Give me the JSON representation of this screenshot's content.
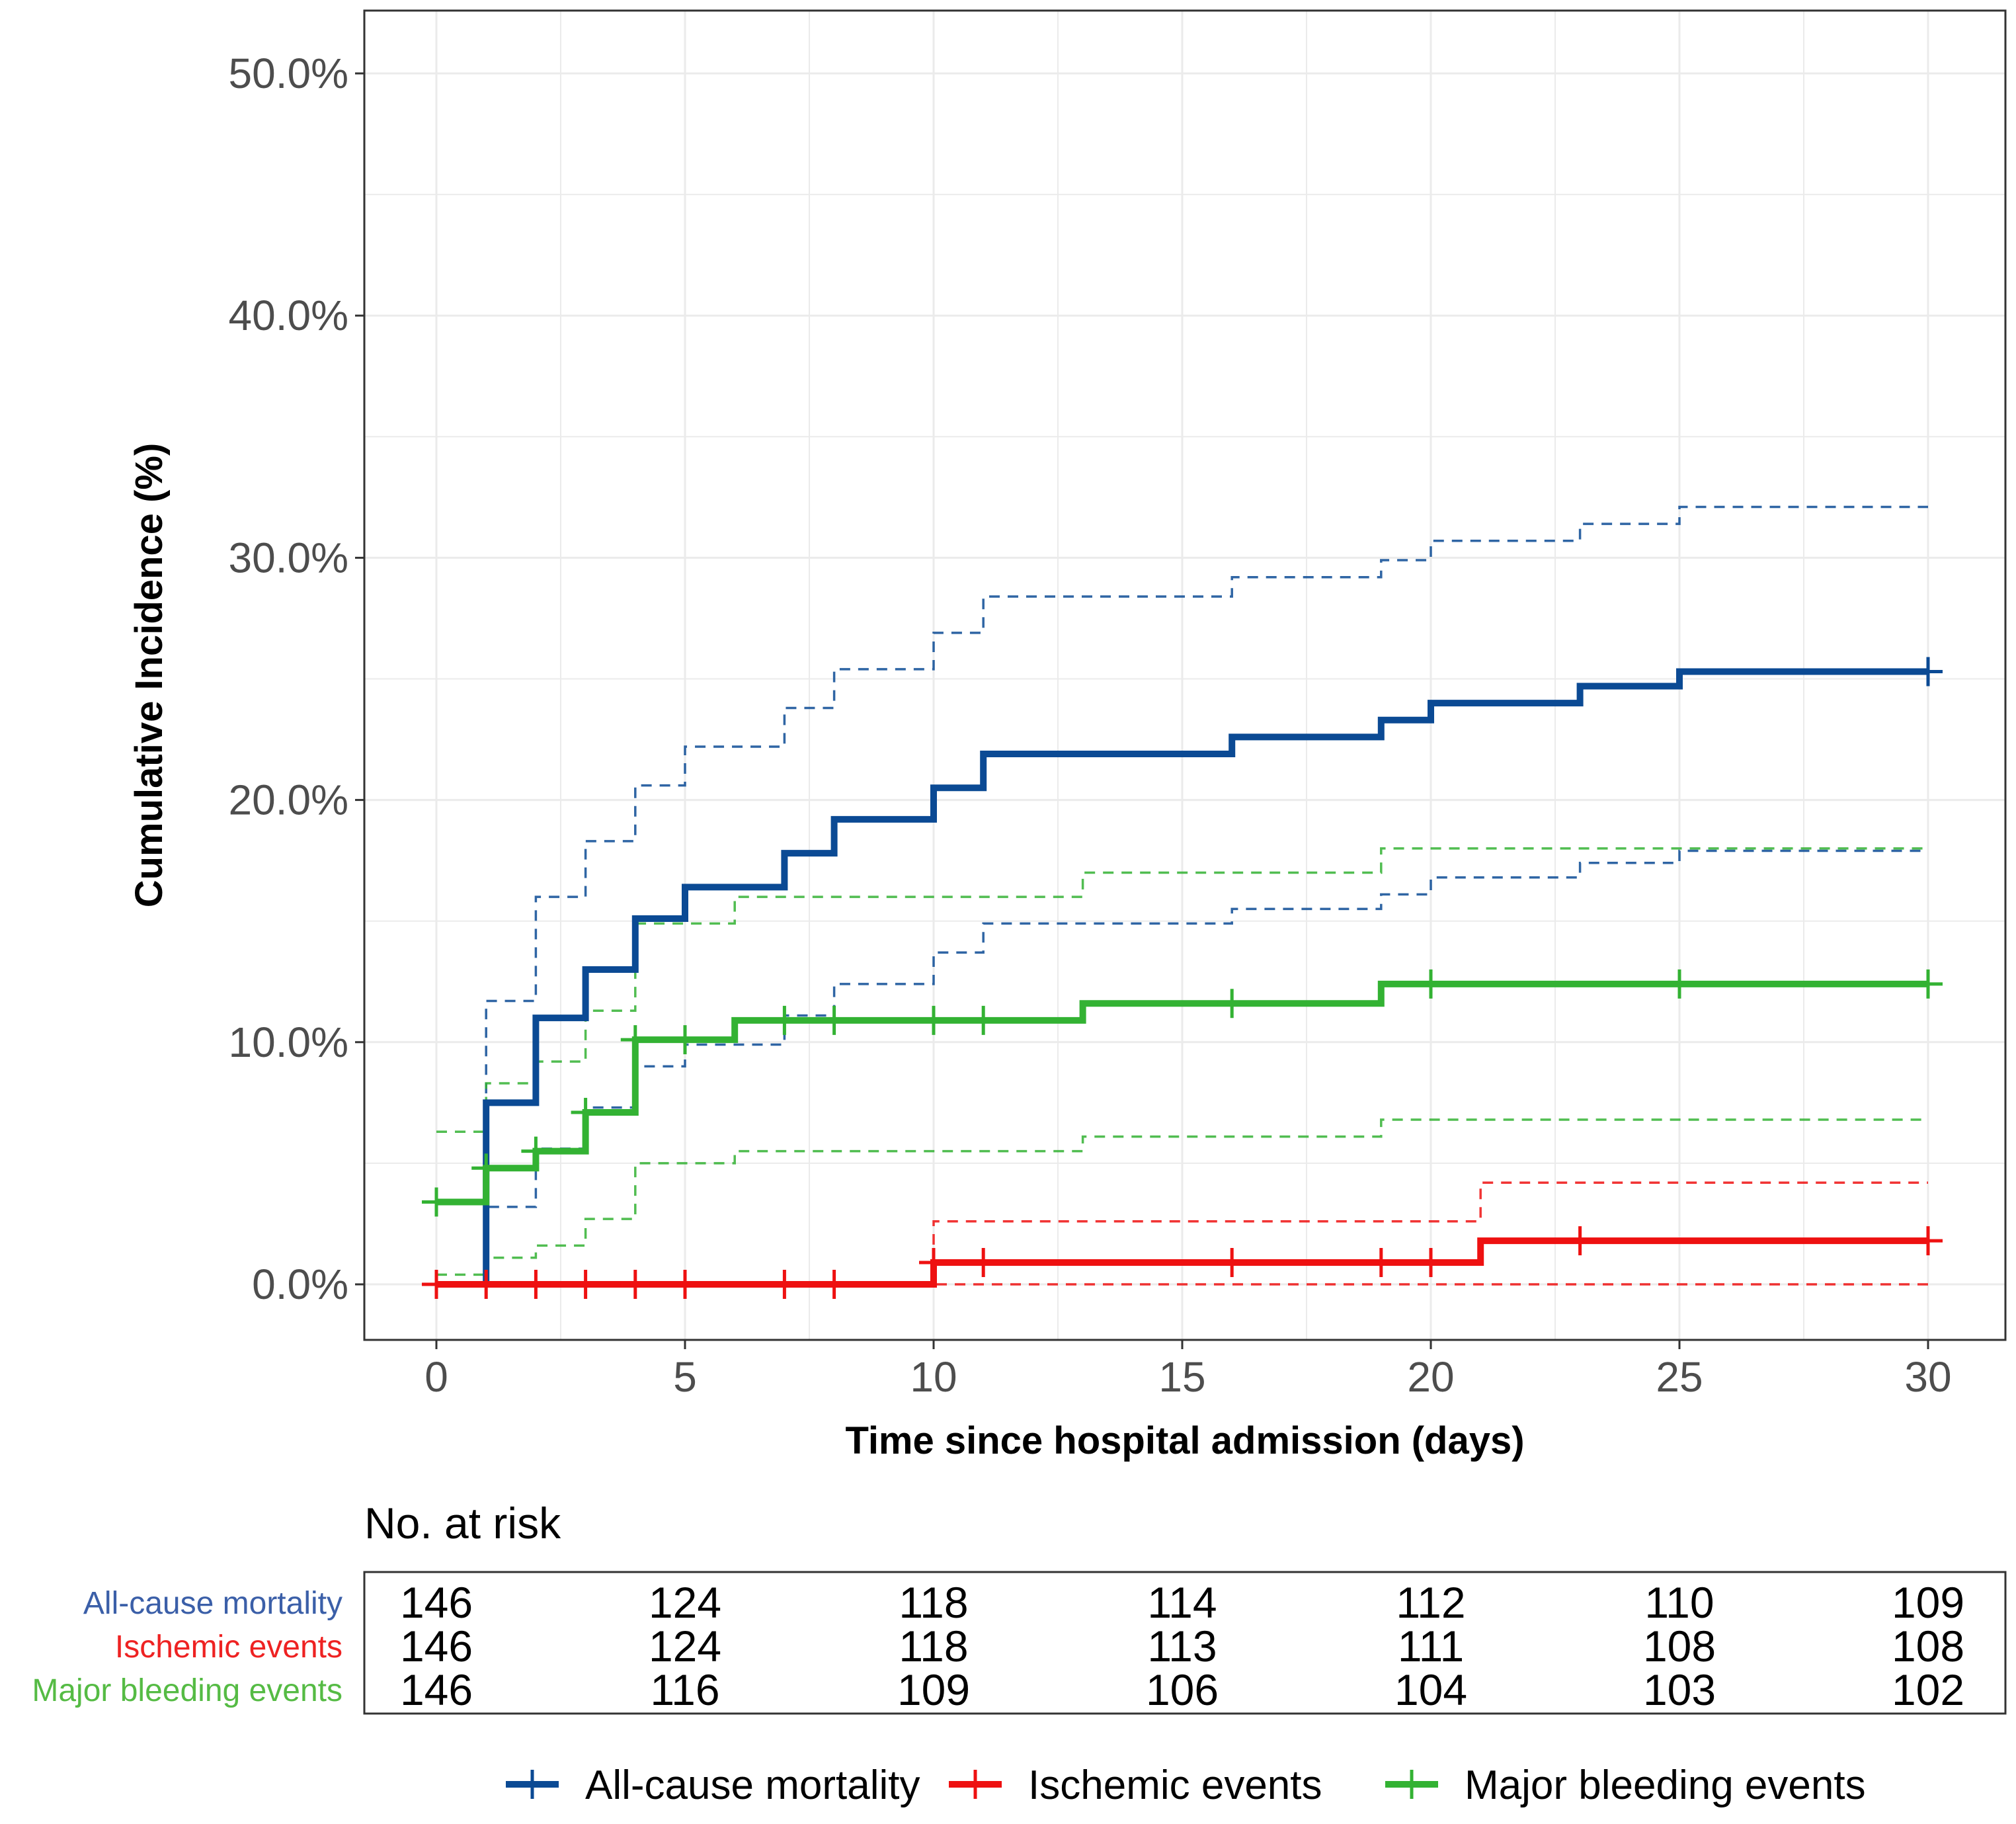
{
  "chart_data": {
    "type": "line",
    "subtype": "step (cumulative incidence)",
    "xlabel": "Time since hospital admission (days)",
    "ylabel": "Cumulative Incidence (%)",
    "xlim": [
      0,
      30
    ],
    "ylim": [
      0,
      50
    ],
    "x_ticks": [
      "0",
      "5",
      "10",
      "15",
      "20",
      "25",
      "30"
    ],
    "x_tick_values": [
      0,
      5,
      10,
      15,
      20,
      25,
      30
    ],
    "y_ticks": [
      "0.0%",
      "10.0%",
      "20.0%",
      "30.0%",
      "40.0%",
      "50.0%"
    ],
    "y_tick_values": [
      0,
      10,
      20,
      30,
      40,
      50
    ],
    "grid": true,
    "legend_position": "bottom",
    "series": [
      {
        "name": "All-cause mortality",
        "color": "#0b4a94",
        "steps": [
          [
            0,
            0
          ],
          [
            1,
            7.5
          ],
          [
            2,
            11.0
          ],
          [
            3,
            13.0
          ],
          [
            4,
            15.1
          ],
          [
            5,
            16.4
          ],
          [
            7,
            17.8
          ],
          [
            8,
            19.2
          ],
          [
            10,
            20.5
          ],
          [
            11,
            21.9
          ],
          [
            16,
            22.6
          ],
          [
            19,
            23.3
          ],
          [
            20,
            24.0
          ],
          [
            23,
            24.7
          ],
          [
            25,
            25.3
          ],
          [
            30,
            25.3
          ]
        ],
        "upper_ci": [
          [
            0,
            0
          ],
          [
            1,
            11.7
          ],
          [
            2,
            16.0
          ],
          [
            3,
            18.3
          ],
          [
            4,
            20.6
          ],
          [
            5,
            22.2
          ],
          [
            7,
            23.8
          ],
          [
            8,
            25.4
          ],
          [
            10,
            26.9
          ],
          [
            11,
            28.4
          ],
          [
            16,
            29.2
          ],
          [
            19,
            29.9
          ],
          [
            20,
            30.7
          ],
          [
            23,
            31.4
          ],
          [
            25,
            32.1
          ],
          [
            30,
            32.1
          ]
        ],
        "lower_ci": [
          [
            0,
            0
          ],
          [
            1,
            3.2
          ],
          [
            2,
            5.6
          ],
          [
            3,
            7.3
          ],
          [
            4,
            9.0
          ],
          [
            5,
            9.9
          ],
          [
            7,
            11.1
          ],
          [
            8,
            12.4
          ],
          [
            10,
            13.7
          ],
          [
            11,
            14.9
          ],
          [
            16,
            15.5
          ],
          [
            19,
            16.1
          ],
          [
            20,
            16.8
          ],
          [
            23,
            17.4
          ],
          [
            25,
            17.9
          ],
          [
            30,
            17.9
          ]
        ],
        "censor_times": [
          30
        ]
      },
      {
        "name": "Ischemic events",
        "color": "#ee1111",
        "steps": [
          [
            0,
            0
          ],
          [
            10,
            0.9
          ],
          [
            21,
            1.8
          ],
          [
            30,
            1.8
          ]
        ],
        "upper_ci": [
          [
            0,
            0
          ],
          [
            10,
            2.6
          ],
          [
            21,
            4.2
          ],
          [
            30,
            4.2
          ]
        ],
        "lower_ci": [
          [
            0,
            0
          ],
          [
            30,
            0
          ]
        ],
        "censor_times": [
          0,
          1,
          2,
          3,
          4,
          5,
          7,
          8,
          10,
          11,
          16,
          19,
          20,
          23,
          30
        ]
      },
      {
        "name": "Major bleeding events",
        "color": "#33b233",
        "steps": [
          [
            0,
            3.4
          ],
          [
            1,
            4.8
          ],
          [
            2,
            5.5
          ],
          [
            3,
            7.1
          ],
          [
            4,
            10.1
          ],
          [
            6,
            10.9
          ],
          [
            13,
            11.6
          ],
          [
            19,
            12.4
          ],
          [
            30,
            12.4
          ]
        ],
        "upper_ci": [
          [
            0,
            6.3
          ],
          [
            1,
            8.3
          ],
          [
            2,
            9.2
          ],
          [
            3,
            11.3
          ],
          [
            4,
            14.9
          ],
          [
            6,
            16.0
          ],
          [
            13,
            17.0
          ],
          [
            19,
            18.0
          ],
          [
            30,
            18.0
          ]
        ],
        "lower_ci": [
          [
            0,
            0.4
          ],
          [
            1,
            1.1
          ],
          [
            2,
            1.6
          ],
          [
            3,
            2.7
          ],
          [
            4,
            5.0
          ],
          [
            6,
            5.5
          ],
          [
            13,
            6.1
          ],
          [
            19,
            6.8
          ],
          [
            30,
            6.8
          ]
        ],
        "censor_times": [
          0,
          1,
          2,
          3,
          4,
          5,
          7,
          8,
          10,
          11,
          16,
          20,
          25,
          30
        ]
      }
    ]
  },
  "risk_table": {
    "title": "No. at risk",
    "times": [
      0,
      5,
      10,
      15,
      20,
      25,
      30
    ],
    "rows": [
      {
        "label": "All-cause mortality",
        "color": "#3b5fa8",
        "values": [
          "146",
          "124",
          "118",
          "114",
          "112",
          "110",
          "109"
        ]
      },
      {
        "label": "Ischemic events",
        "color": "#ee2222",
        "values": [
          "146",
          "124",
          "118",
          "113",
          "111",
          "108",
          "108"
        ]
      },
      {
        "label": "Major bleeding events",
        "color": "#55bb44",
        "values": [
          "146",
          "116",
          "109",
          "106",
          "104",
          "103",
          "102"
        ]
      }
    ]
  }
}
